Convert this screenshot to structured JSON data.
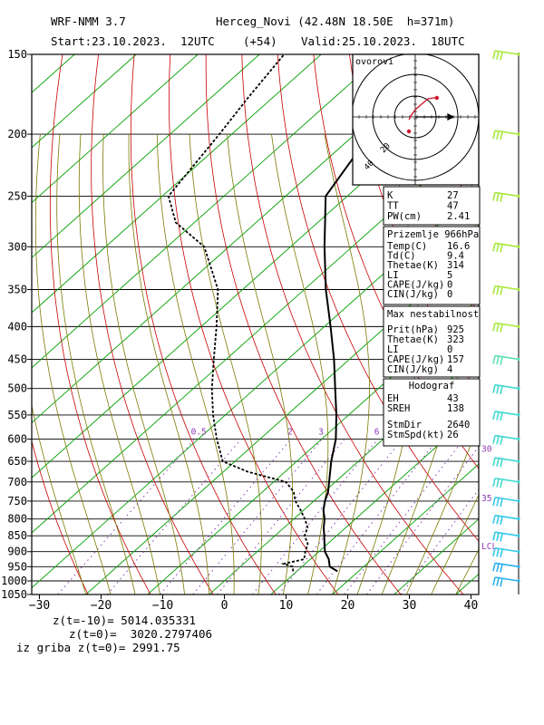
{
  "header": {
    "model": "WRF-NMM 3.7",
    "station": "Herceg_Novi (42.48N 18.50E  h=371m)",
    "start": "Start:23.10.2023.  12UTC",
    "lead": "(+54)",
    "valid": "Valid:25.10.2023.  18UTC"
  },
  "footer": {
    "line1": "z(t=-10)= 5014.035331",
    "line2": "z(t=0)=  3020.2797406",
    "line3": "iz griba z(t=0)= 2991.75"
  },
  "panels": {
    "indices": [
      {
        "label": "K",
        "value": "27"
      },
      {
        "label": "TT",
        "value": "47"
      },
      {
        "label": "PW(cm)",
        "value": "2.41"
      }
    ],
    "surface": {
      "title": "Prizemlje 966hPa",
      "rows": [
        {
          "label": "Temp(C)",
          "value": "16.6"
        },
        {
          "label": "Td(C)",
          "value": "9.4"
        },
        {
          "label": "Thetae(K)",
          "value": "314"
        },
        {
          "label": "LI",
          "value": "5"
        },
        {
          "label": "CAPE(J/kg)",
          "value": "0"
        },
        {
          "label": "CIN(J/kg)",
          "value": "0"
        }
      ]
    },
    "unstable": {
      "title": "Max nestabilnost",
      "rows": [
        {
          "label": "Prit(hPa)",
          "value": "925"
        },
        {
          "label": "Thetae(K)",
          "value": "323"
        },
        {
          "label": "LI",
          "value": "0"
        },
        {
          "label": "CAPE(J/kg)",
          "value": "157"
        },
        {
          "label": "CIN(J/kg)",
          "value": "4"
        }
      ]
    },
    "hodograph_stats": {
      "title": "Hodograf",
      "rows": [
        {
          "label": "EH",
          "value": "43"
        },
        {
          "label": "SREH",
          "value": "138"
        },
        {
          "label": "StmDir",
          "value": "2640"
        },
        {
          "label": "StmSpd(kt)",
          "value": "26"
        }
      ]
    }
  },
  "hodograph": {
    "title": "ovorovi",
    "ring_labels": [
      "20",
      "40"
    ],
    "trace_uv": [
      [
        0,
        -3
      ],
      [
        4,
        2
      ],
      [
        10,
        8
      ],
      [
        20,
        14
      ],
      [
        30,
        20
      ],
      [
        40,
        21
      ],
      [
        44,
        21
      ]
    ],
    "storm_motion_uv": [
      [
        0,
        0
      ],
      [
        50,
        0
      ]
    ]
  },
  "chart_data": {
    "type": "line",
    "title": "",
    "x_axis": {
      "label": "",
      "range": [
        -30,
        42
      ],
      "ticks": [
        -30,
        -20,
        -10,
        0,
        10,
        20,
        30,
        40
      ],
      "unit": "°C"
    },
    "y_axis": {
      "label": "",
      "range": [
        150,
        1050
      ],
      "scale": "log",
      "ticks": [
        150,
        200,
        250,
        300,
        350,
        400,
        450,
        500,
        550,
        600,
        650,
        700,
        750,
        800,
        850,
        900,
        950,
        1000,
        1050
      ]
    },
    "grid": true,
    "skew": "skew-T log-p",
    "mixing_ratio_labels": [
      "0.5",
      "2",
      "3",
      "6",
      "8"
    ],
    "right_labels": [
      {
        "text": "30",
        "p": 620
      },
      {
        "text": "35",
        "p": 740
      },
      {
        "text": "LCL",
        "p": 880
      }
    ],
    "series": [
      {
        "role": "temperature",
        "points": [
          [
            966,
            16.6
          ],
          [
            950,
            14.5
          ],
          [
            925,
            13.0
          ],
          [
            900,
            11.0
          ],
          [
            875,
            9.5
          ],
          [
            850,
            8.0
          ],
          [
            825,
            6.4
          ],
          [
            800,
            5.0
          ],
          [
            775,
            3.2
          ],
          [
            750,
            1.8
          ],
          [
            725,
            0.6
          ],
          [
            700,
            -1.0
          ],
          [
            650,
            -4.4
          ],
          [
            600,
            -7.7
          ],
          [
            550,
            -12.0
          ],
          [
            500,
            -17.0
          ],
          [
            450,
            -22.5
          ],
          [
            400,
            -29.0
          ],
          [
            350,
            -36.5
          ],
          [
            300,
            -44.5
          ],
          [
            250,
            -53.5
          ],
          [
            200,
            -57.5
          ],
          [
            150,
            -63.0
          ]
        ]
      },
      {
        "role": "dewpoint",
        "points": [
          [
            966,
            9.4
          ],
          [
            950,
            8.5
          ],
          [
            940,
            6.5
          ],
          [
            925,
            9.0
          ],
          [
            900,
            7.8
          ],
          [
            875,
            6.8
          ],
          [
            850,
            4.8
          ],
          [
            825,
            3.8
          ],
          [
            800,
            1.8
          ],
          [
            775,
            -0.5
          ],
          [
            750,
            -3.0
          ],
          [
            725,
            -5.0
          ],
          [
            700,
            -8.0
          ],
          [
            675,
            -16.0
          ],
          [
            650,
            -22.0
          ],
          [
            600,
            -27.0
          ],
          [
            550,
            -32.0
          ],
          [
            500,
            -37.0
          ],
          [
            450,
            -42.0
          ],
          [
            400,
            -47.5
          ],
          [
            350,
            -54.0
          ],
          [
            300,
            -64.0
          ],
          [
            275,
            -73.0
          ],
          [
            250,
            -79.0
          ],
          [
            200,
            -82.0
          ],
          [
            175,
            -84.0
          ],
          [
            150,
            -86.0
          ]
        ]
      }
    ],
    "wind_barbs": [
      {
        "p": 150,
        "color": "#a7e83a"
      },
      {
        "p": 200,
        "color": "#a7e83a"
      },
      {
        "p": 250,
        "color": "#a7e83a"
      },
      {
        "p": 300,
        "color": "#a7e83a"
      },
      {
        "p": 350,
        "color": "#a7e83a"
      },
      {
        "p": 400,
        "color": "#a7e83a"
      },
      {
        "p": 450,
        "color": "#5ee0b8"
      },
      {
        "p": 500,
        "color": "#3fd8d0"
      },
      {
        "p": 550,
        "color": "#3fd8d0"
      },
      {
        "p": 600,
        "color": "#3fd8d0"
      },
      {
        "p": 650,
        "color": "#3fd8d0"
      },
      {
        "p": 700,
        "color": "#3fd8d0"
      },
      {
        "p": 750,
        "color": "#35c8e8"
      },
      {
        "p": 800,
        "color": "#35c8e8"
      },
      {
        "p": 850,
        "color": "#35c8e8"
      },
      {
        "p": 900,
        "color": "#35c8e8"
      },
      {
        "p": 950,
        "color": "#2ab0f0"
      },
      {
        "p": 1000,
        "color": "#2ab0f0"
      }
    ],
    "colors": {
      "isotherm": "#00a000",
      "dry_adiabat": "#c80000",
      "moist_adiabat": "#7a7a00",
      "mixing_ratio": "#8c3cb4",
      "temperature": "#000000",
      "dewpoint": "#000000",
      "hodograph_trace": "#d0122c"
    }
  }
}
